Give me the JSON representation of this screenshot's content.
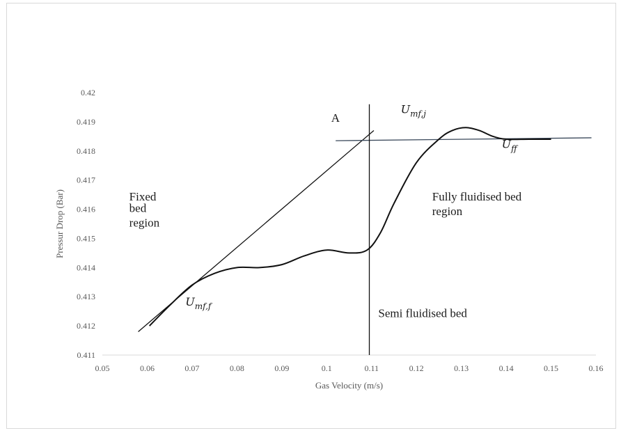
{
  "chart_data": {
    "type": "line",
    "xlabel": "Gas Velocity (m/s)",
    "ylabel": "Pressur Drop (Bar)",
    "xlim": [
      0.05,
      0.16
    ],
    "ylim": [
      0.411,
      0.42
    ],
    "x_ticks": [
      "0.05",
      "0.06",
      "0.07",
      "0.08",
      "0.09",
      "0.1",
      "0.11",
      "0.12",
      "0.13",
      "0.14",
      "0.15",
      "0.16"
    ],
    "y_ticks": [
      "0.411",
      "0.412",
      "0.413",
      "0.414",
      "0.415",
      "0.416",
      "0.417",
      "0.418",
      "0.419",
      "0.42"
    ],
    "grid": false,
    "series": [
      {
        "x": [
          0.0605,
          0.065,
          0.07,
          0.075,
          0.08,
          0.085,
          0.09,
          0.095,
          0.1,
          0.105,
          0.109,
          0.112,
          0.115,
          0.12,
          0.125,
          0.128,
          0.131,
          0.134,
          0.137,
          0.14,
          0.145,
          0.15
        ],
        "y": [
          0.412,
          0.4127,
          0.4134,
          0.4138,
          0.414,
          0.414,
          0.4141,
          0.4144,
          0.4146,
          0.4145,
          0.4146,
          0.4152,
          0.4162,
          0.4176,
          0.4184,
          0.4187,
          0.4188,
          0.4187,
          0.4185,
          0.4184,
          0.4184,
          0.4184
        ]
      }
    ],
    "reference_lines": [
      {
        "x": [
          0.058,
          0.1105
        ],
        "y": [
          0.4118,
          0.4187
        ]
      },
      {
        "x": [
          0.102,
          0.159
        ],
        "y": [
          0.41835,
          0.41845
        ]
      },
      {
        "x": [
          0.1095,
          0.1095
        ],
        "y": [
          0.411,
          0.4196
        ]
      }
    ],
    "annotations": [
      {
        "text": "A",
        "x": 0.101,
        "y": 0.419
      },
      {
        "text": "Fixed",
        "x": 0.056,
        "y": 0.4163
      },
      {
        "text": "bed",
        "x": 0.056,
        "y": 0.4159
      },
      {
        "text": "region",
        "x": 0.056,
        "y": 0.4154
      },
      {
        "text": "Fully fluidised bed",
        "x": 0.1235,
        "y": 0.4163
      },
      {
        "text": "region",
        "x": 0.1235,
        "y": 0.4158
      },
      {
        "text": "Semi fluidised bed",
        "x": 0.1115,
        "y": 0.4123
      }
    ],
    "math_labels": [
      {
        "base": "U",
        "sub": "mf,j",
        "x": 0.1165,
        "y": 0.4193
      },
      {
        "base": "U",
        "sub": "ff",
        "x": 0.139,
        "y": 0.4181
      },
      {
        "base": "U",
        "sub": "mf,f",
        "x": 0.0685,
        "y": 0.4127
      }
    ]
  }
}
